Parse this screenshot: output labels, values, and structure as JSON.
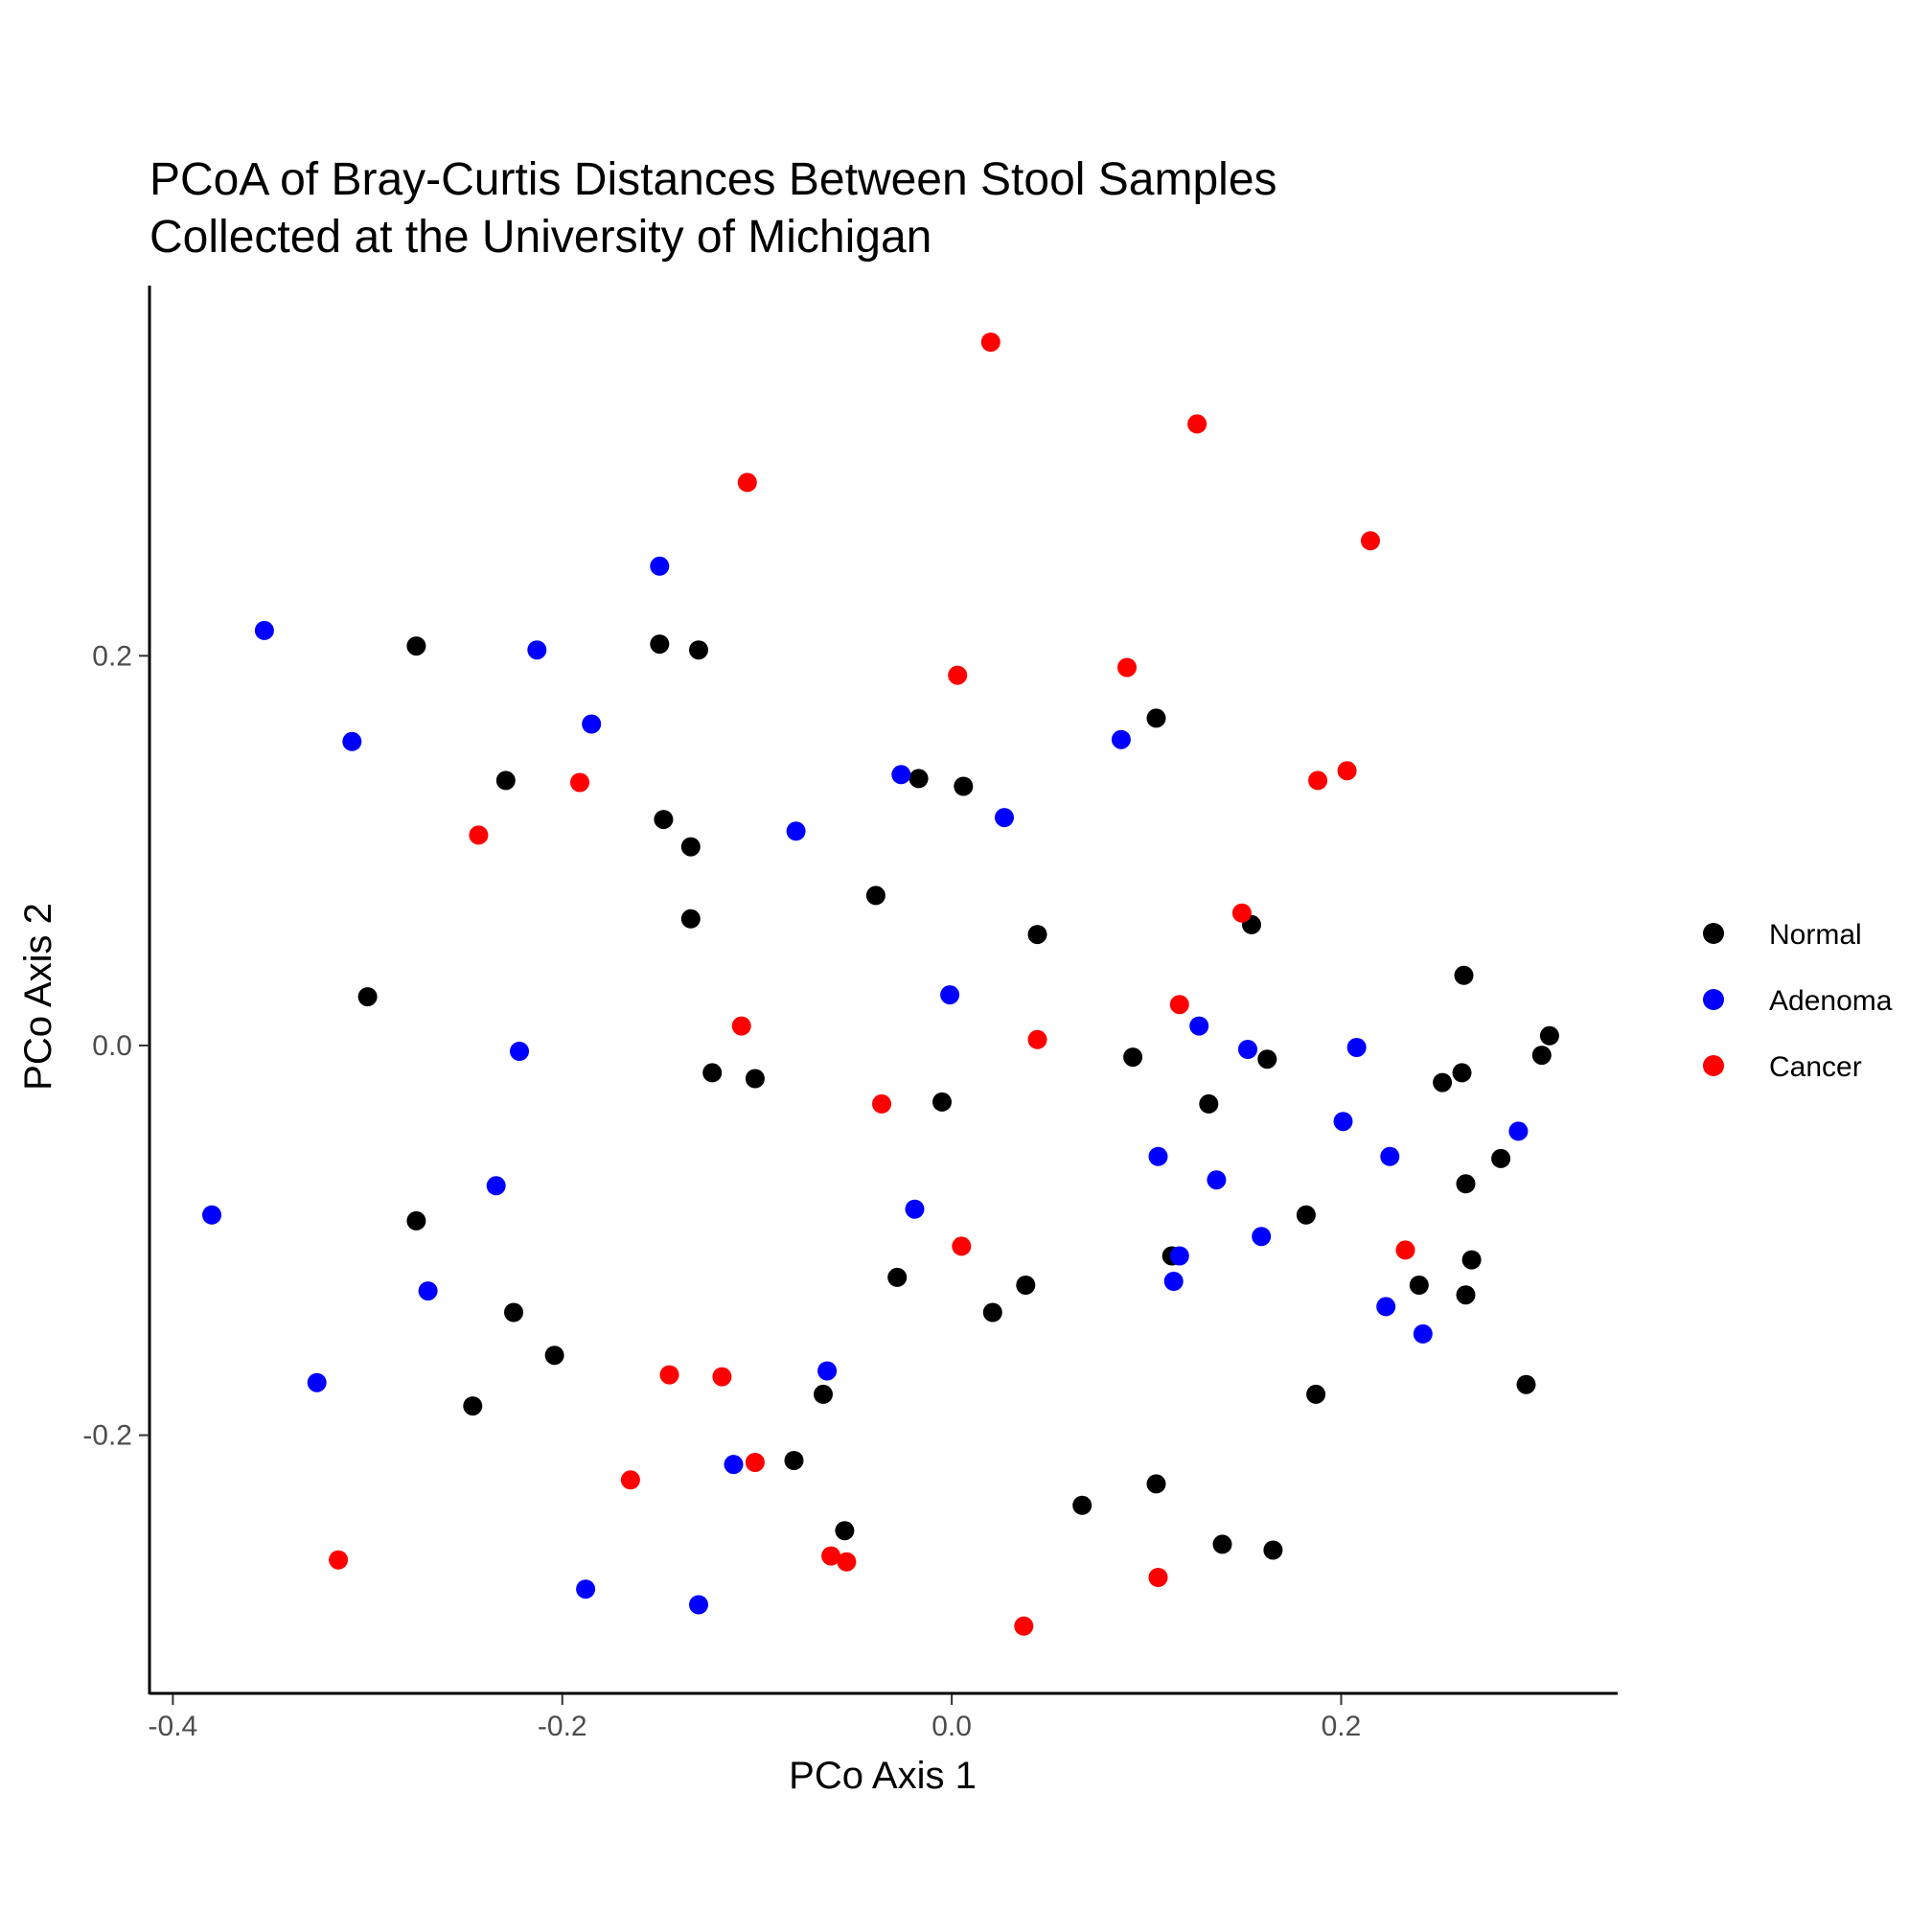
{
  "chart_data": {
    "type": "scatter",
    "title_lines": [
      "PCoA of Bray-Curtis Distances Between Stool Samples",
      "Collected at the University of Michigan"
    ],
    "xlabel": "PCo Axis 1",
    "ylabel": "PCo Axis 2",
    "xlim": [
      -0.412,
      0.342
    ],
    "ylim": [
      -0.333,
      0.39
    ],
    "x_ticks": [
      -0.4,
      -0.2,
      0.0,
      0.2
    ],
    "x_tick_labels": [
      "-0.4",
      "-0.2",
      "0.0",
      "0.2"
    ],
    "y_ticks": [
      -0.2,
      0.0,
      0.2
    ],
    "y_tick_labels": [
      "-0.2",
      "0.0",
      "0.2"
    ],
    "grid": false,
    "legend_position": "right",
    "series": [
      {
        "name": "Normal",
        "color": "#000000",
        "points": [
          [
            -0.275,
            0.205
          ],
          [
            -0.15,
            0.206
          ],
          [
            -0.13,
            0.203
          ],
          [
            -0.229,
            0.136
          ],
          [
            -0.148,
            0.116
          ],
          [
            -0.134,
            0.102
          ],
          [
            -0.134,
            0.065
          ],
          [
            -0.3,
            0.025
          ],
          [
            -0.123,
            -0.014
          ],
          [
            -0.101,
            -0.017
          ],
          [
            -0.039,
            0.077
          ],
          [
            -0.017,
            0.137
          ],
          [
            0.006,
            0.133
          ],
          [
            -0.005,
            -0.029
          ],
          [
            0.044,
            0.057
          ],
          [
            0.105,
            0.168
          ],
          [
            0.154,
            0.062
          ],
          [
            0.093,
            -0.006
          ],
          [
            0.132,
            -0.03
          ],
          [
            0.162,
            -0.007
          ],
          [
            0.263,
            0.036
          ],
          [
            0.252,
            -0.019
          ],
          [
            0.262,
            -0.014
          ],
          [
            0.303,
            -0.005
          ],
          [
            0.307,
            0.005
          ],
          [
            0.282,
            -0.058
          ],
          [
            0.264,
            -0.071
          ],
          [
            0.182,
            -0.087
          ],
          [
            0.113,
            -0.108
          ],
          [
            0.267,
            -0.11
          ],
          [
            0.24,
            -0.123
          ],
          [
            0.264,
            -0.128
          ],
          [
            0.187,
            -0.179
          ],
          [
            0.295,
            -0.174
          ],
          [
            0.105,
            -0.225
          ],
          [
            0.067,
            -0.236
          ],
          [
            0.139,
            -0.256
          ],
          [
            0.165,
            -0.259
          ],
          [
            -0.275,
            -0.09
          ],
          [
            -0.225,
            -0.137
          ],
          [
            -0.204,
            -0.159
          ],
          [
            -0.246,
            -0.185
          ],
          [
            -0.028,
            -0.119
          ],
          [
            0.021,
            -0.137
          ],
          [
            0.038,
            -0.123
          ],
          [
            -0.066,
            -0.179
          ],
          [
            -0.081,
            -0.213
          ],
          [
            -0.055,
            -0.249
          ]
        ]
      },
      {
        "name": "Adenoma",
        "color": "#0000ff",
        "points": [
          [
            -0.353,
            0.213
          ],
          [
            -0.308,
            0.156
          ],
          [
            -0.213,
            0.203
          ],
          [
            -0.185,
            0.165
          ],
          [
            -0.15,
            0.246
          ],
          [
            -0.08,
            0.11
          ],
          [
            -0.026,
            0.139
          ],
          [
            0.027,
            0.117
          ],
          [
            0.087,
            0.157
          ],
          [
            -0.001,
            0.026
          ],
          [
            -0.222,
            -0.003
          ],
          [
            0.127,
            0.01
          ],
          [
            0.152,
            -0.002
          ],
          [
            0.208,
            -0.001
          ],
          [
            0.201,
            -0.039
          ],
          [
            0.225,
            -0.057
          ],
          [
            0.291,
            -0.044
          ],
          [
            0.106,
            -0.057
          ],
          [
            0.136,
            -0.069
          ],
          [
            0.159,
            -0.098
          ],
          [
            0.117,
            -0.108
          ],
          [
            0.114,
            -0.121
          ],
          [
            0.223,
            -0.134
          ],
          [
            0.242,
            -0.148
          ],
          [
            -0.38,
            -0.087
          ],
          [
            -0.234,
            -0.072
          ],
          [
            -0.269,
            -0.126
          ],
          [
            -0.326,
            -0.173
          ],
          [
            -0.019,
            -0.084
          ],
          [
            -0.064,
            -0.167
          ],
          [
            -0.112,
            -0.215
          ],
          [
            -0.188,
            -0.279
          ],
          [
            -0.13,
            -0.287
          ]
        ]
      },
      {
        "name": "Cancer",
        "color": "#ff0000",
        "points": [
          [
            0.02,
            0.361
          ],
          [
            0.126,
            0.319
          ],
          [
            -0.105,
            0.289
          ],
          [
            0.215,
            0.259
          ],
          [
            0.003,
            0.19
          ],
          [
            0.09,
            0.194
          ],
          [
            -0.191,
            0.135
          ],
          [
            -0.243,
            0.108
          ],
          [
            0.188,
            0.136
          ],
          [
            0.203,
            0.141
          ],
          [
            0.149,
            0.068
          ],
          [
            0.117,
            0.021
          ],
          [
            -0.108,
            0.01
          ],
          [
            0.044,
            0.003
          ],
          [
            -0.036,
            -0.03
          ],
          [
            0.005,
            -0.103
          ],
          [
            0.233,
            -0.105
          ],
          [
            -0.145,
            -0.169
          ],
          [
            -0.118,
            -0.17
          ],
          [
            -0.101,
            -0.214
          ],
          [
            -0.165,
            -0.223
          ],
          [
            -0.315,
            -0.264
          ],
          [
            -0.062,
            -0.262
          ],
          [
            -0.054,
            -0.265
          ],
          [
            0.037,
            -0.298
          ],
          [
            0.106,
            -0.273
          ]
        ]
      }
    ]
  }
}
